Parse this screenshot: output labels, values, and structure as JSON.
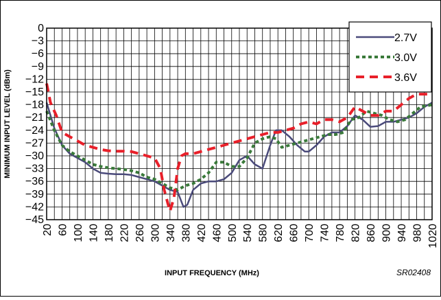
{
  "chart_data": {
    "type": "line",
    "title": "",
    "xlabel": "INPUT FREQUENCY (MHz)",
    "ylabel": "MINIMUM INPUT LEVEL (dBm)",
    "figure_code": "SR02408",
    "xlim": [
      20,
      1020
    ],
    "ylim": [
      -45,
      0
    ],
    "x_ticks": [
      "20",
      "60",
      "100",
      "140",
      "180",
      "220",
      "260",
      "300",
      "340",
      "380",
      "420",
      "460",
      "500",
      "540",
      "580",
      "620",
      "660",
      "700",
      "740",
      "780",
      "820",
      "860",
      "900",
      "940",
      "980",
      "1020"
    ],
    "y_ticks": [
      "0",
      "−3",
      "−6",
      "−9",
      "−12",
      "−15",
      "−18",
      "−21",
      "−24",
      "−27",
      "−30",
      "−33",
      "−36",
      "−39",
      "−42",
      "−45"
    ],
    "grid": true,
    "legend_position": "top-right",
    "series": [
      {
        "name": "2.7V",
        "color": "#4a4a7a",
        "style": "solid",
        "x": [
          20,
          40,
          60,
          80,
          100,
          120,
          140,
          160,
          180,
          200,
          220,
          240,
          260,
          280,
          300,
          320,
          340,
          360,
          375,
          385,
          400,
          420,
          440,
          460,
          480,
          500,
          520,
          540,
          560,
          580,
          600,
          615,
          630,
          650,
          670,
          690,
          700,
          720,
          740,
          760,
          780,
          800,
          820,
          840,
          860,
          880,
          900,
          920,
          940,
          960,
          980,
          1000,
          1020
        ],
        "y": [
          -17.5,
          -23.5,
          -27.5,
          -29.5,
          -30.5,
          -31.5,
          -33,
          -34,
          -34.2,
          -34.3,
          -34.3,
          -34.5,
          -35,
          -35.5,
          -36,
          -37,
          -38,
          -38.5,
          -42,
          -41.5,
          -38,
          -36.5,
          -36,
          -36,
          -35.5,
          -34,
          -31,
          -30,
          -32,
          -33,
          -27.5,
          -24,
          -24,
          -25.5,
          -27.5,
          -29,
          -29,
          -27.5,
          -25.5,
          -24.5,
          -24.5,
          -23,
          -20.5,
          -21.5,
          -23.2,
          -23,
          -22,
          -22,
          -21.5,
          -21,
          -20,
          -18.5,
          -17.5
        ]
      },
      {
        "name": "3.0V",
        "color": "#3a7a3a",
        "style": "dotted",
        "x": [
          20,
          40,
          60,
          80,
          100,
          120,
          140,
          160,
          180,
          200,
          220,
          240,
          260,
          280,
          300,
          320,
          340,
          360,
          380,
          400,
          420,
          440,
          460,
          480,
          500,
          520,
          540,
          560,
          580,
          600,
          615,
          630,
          650,
          670,
          690,
          710,
          730,
          750,
          770,
          790,
          810,
          830,
          850,
          870,
          890,
          910,
          930,
          950,
          970,
          990,
          1020
        ],
        "y": [
          -19.5,
          -24,
          -27.5,
          -29,
          -30,
          -31,
          -32,
          -32.5,
          -32.8,
          -33,
          -33.2,
          -33.5,
          -34,
          -35,
          -35.5,
          -36.5,
          -37.5,
          -38,
          -37,
          -36.5,
          -35.5,
          -34,
          -31.5,
          -31.5,
          -32.5,
          -32.5,
          -30.5,
          -27,
          -26,
          -25.5,
          -26,
          -28,
          -27.5,
          -27,
          -26.5,
          -26,
          -25.5,
          -25,
          -25,
          -24.5,
          -21.5,
          -21,
          -19.5,
          -20,
          -20.5,
          -21.5,
          -22,
          -21.5,
          -20,
          -18.5,
          -18
        ]
      },
      {
        "name": "3.6V",
        "color": "#e8202a",
        "style": "dashed",
        "x": [
          20,
          30,
          45,
          60,
          80,
          100,
          120,
          140,
          160,
          180,
          200,
          220,
          240,
          260,
          280,
          300,
          315,
          325,
          340,
          350,
          360,
          370,
          380,
          400,
          420,
          440,
          460,
          480,
          500,
          520,
          540,
          560,
          580,
          600,
          620,
          640,
          660,
          680,
          700,
          720,
          740,
          760,
          780,
          800,
          820,
          840,
          860,
          880,
          900,
          920,
          940,
          960,
          980,
          1000,
          1020
        ],
        "y": [
          -13,
          -17.5,
          -20.5,
          -24.5,
          -25.5,
          -26.5,
          -27.5,
          -28,
          -28.5,
          -28.8,
          -28.9,
          -28.9,
          -29,
          -29.5,
          -30,
          -30.5,
          -33,
          -38,
          -43,
          -40,
          -33,
          -30,
          -29.5,
          -29.5,
          -29,
          -28.5,
          -28,
          -27.5,
          -27,
          -26.5,
          -26,
          -25.5,
          -25,
          -24.5,
          -24.5,
          -24,
          -23.5,
          -22.5,
          -22,
          -22.5,
          -21.5,
          -21.5,
          -22,
          -21,
          -18.5,
          -19.5,
          -20.5,
          -20.5,
          -19.5,
          -19.5,
          -18,
          -16.5,
          -15.5,
          -15.5,
          -15.5
        ]
      }
    ]
  }
}
